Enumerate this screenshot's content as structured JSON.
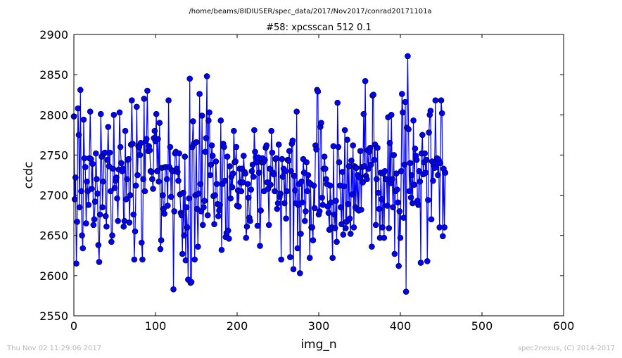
{
  "header": {
    "path": "/home/beams/8IDIUSER/spec_data/2017/Nov2017/conrad20171101a"
  },
  "footer": {
    "timestamp": "Thu Nov 02 11:29:06 2017",
    "credit": "spec2nexus, (C) 2014-2017"
  },
  "colors": {
    "series": "#0000ff"
  },
  "chart_data": {
    "type": "line",
    "title": "#58: xpcsscan 512 0.1",
    "xlabel": "img_n",
    "ylabel": "ccdc",
    "xlim": [
      0,
      600
    ],
    "ylim": [
      2550,
      2900
    ],
    "xticks": [
      "0",
      "100",
      "200",
      "300",
      "400",
      "500",
      "600"
    ],
    "yticks": [
      "2550",
      "2600",
      "2650",
      "2700",
      "2750",
      "2800",
      "2850",
      "2900"
    ],
    "grid": false,
    "markers": "circle",
    "x_start": 0,
    "x_step": 1,
    "values": [
      2798,
      2695,
      2722,
      2615,
      2667,
      2808,
      2775,
      2685,
      2831,
      2705,
      2650,
      2634,
      2794,
      2746,
      2735,
      2665,
      2717,
      2705,
      2688,
      2746,
      2804,
      2745,
      2708,
      2739,
      2663,
      2670,
      2692,
      2752,
      2720,
      2702,
      2638,
      2617,
      2676,
      2801,
      2748,
      2685,
      2717,
      2752,
      2753,
      2674,
      2661,
      2744,
      2785,
      2736,
      2753,
      2705,
      2642,
      2650,
      2733,
      2800,
      2709,
      2718,
      2722,
      2696,
      2668,
      2732,
      2803,
      2760,
      2740,
      2730,
      2733,
      2661,
      2668,
      2780,
      2695,
      2720,
      2744,
      2745,
      2666,
      2700,
      2763,
      2818,
      2764,
      2676,
      2620,
      2655,
      2712,
      2810,
      2725,
      2761,
      2760,
      2750,
      2765,
      2641,
      2620,
      2720,
      2820,
      2705,
      2767,
      2770,
      2830,
      2755,
      2761,
      2756,
      2730,
      2729,
      2720,
      2708,
      2771,
      2780,
      2767,
      2801,
      2730,
      2770,
      2717,
      2790,
      2633,
      2644,
      2734,
      2700,
      2683,
      2677,
      2735,
      2735,
      2720,
      2687,
      2818,
      2735,
      2760,
      2698,
      2731,
      2730,
      2583,
      2680,
      2752,
      2754,
      2733,
      2729,
      2718,
      2752,
      2701,
      2678,
      2675,
      2627,
      2703,
      2650,
      2748,
      2619,
      2685,
      2660,
      2595,
      2696,
      2845,
      2591,
      2592,
      2760,
      2792,
      2764,
      2620,
      2700,
      2766,
      2683,
      2636,
      2702,
      2826,
      2714,
      2680,
      2799,
      2663,
      2685,
      2693,
      2754,
      2771,
      2848,
      2675,
      2793,
      2803,
      2725,
      2738,
      2762,
      2749,
      2699,
      2664,
      2700,
      2742,
      2714,
      2689,
      2674,
      2681,
      2688,
      2793,
      2632,
      2714,
      2764,
      2760,
      2718,
      2648,
      2653,
      2748,
      2656,
      2646,
      2736,
      2696,
      2723,
      2710,
      2727,
      2780,
      2741,
      2742,
      2760,
      2687,
      2706,
      2686,
      2733,
      2716,
      2705,
      2733,
      2716,
      2749,
      2729,
      2727,
      2647,
      2661,
      2714,
      2697,
      2672,
      2668,
      2707,
      2730,
      2738,
      2723,
      2781,
      2754,
      2747,
      2741,
      2662,
      2747,
      2728,
      2637,
      2681,
      2741,
      2746,
      2741,
      2705,
      2744,
      2759,
      2762,
      2716,
      2708,
      2663,
      2733,
      2713,
      2780,
      2753,
      2728,
      2726,
      2705,
      2745,
      2746,
      2683,
      2690,
      2763,
      2698,
      2702,
      2620,
      2745,
      2723,
      2733,
      2690,
      2730,
      2671,
      2705,
      2744,
      2743,
      2755,
      2623,
      2730,
      2764,
      2768,
      2608,
      2724,
      2706,
      2690,
      2804,
      2634,
      2688,
      2714,
      2603,
      2652,
      2717,
      2691,
      2745,
      2728,
      2668,
      2680,
      2741,
      2705,
      2725,
      2716,
      2622,
      2714,
      2660,
      2660,
      2644,
      2712,
      2684,
      2762,
      2757,
      2831,
      2829,
      2676,
      2680,
      2785,
      2790,
      2697,
      2688,
      2733,
      2748,
      2733,
      2720,
      2714,
      2686,
      2678,
      2657,
      2712,
      2691,
      2660,
      2622,
      2761,
      2676,
      2659,
      2693,
      2642,
      2815,
      2760,
      2741,
      2712,
      2685,
      2664,
      2729,
      2651,
      2711,
      2781,
      2659,
      2667,
      2769,
      2689,
      2736,
      2671,
      2652,
      2743,
      2701,
      2762,
      2660,
      2736,
      2685,
      2734,
      2683,
      2725,
      2681,
      2722,
      2755,
      2682,
      2735,
      2716,
      2801,
      2736,
      2842,
      2724,
      2720,
      2756,
      2733,
      2754,
      2759,
      2738,
      2636,
      2824,
      2825,
      2744,
      2763,
      2663,
      2720,
      2759,
      2703,
      2683,
      2647,
      2728,
      2695,
      2660,
      2727,
      2647,
      2730,
      2720,
      2720,
      2687,
      2797,
      2659,
      2765,
      2715,
      2800,
      2720,
      2685,
      2750,
      2627,
      2705,
      2727,
      2707,
      2691,
      2612,
      2680,
      2647,
      2730,
      2826,
      2803,
      2672,
      2738,
      2816,
      2580,
      2784,
      2873,
      2782,
      2705,
      2740,
      2697,
      2725,
      2690,
      2793,
      2713,
      2758,
      2749,
      2744,
      2693,
      2688,
      2730,
      2717,
      2616,
      2752,
      2775,
      2726,
      2741,
      2752,
      2728,
      2744,
      2618,
      2694,
      2778,
      2800,
      2805,
      2670,
      2742,
      2718,
      2737,
      2734,
      2818,
      2740,
      2746,
      2725,
      2744,
      2660,
      2740,
      2818,
      2802,
      2649,
      2733,
      2660,
      2728
    ]
  }
}
